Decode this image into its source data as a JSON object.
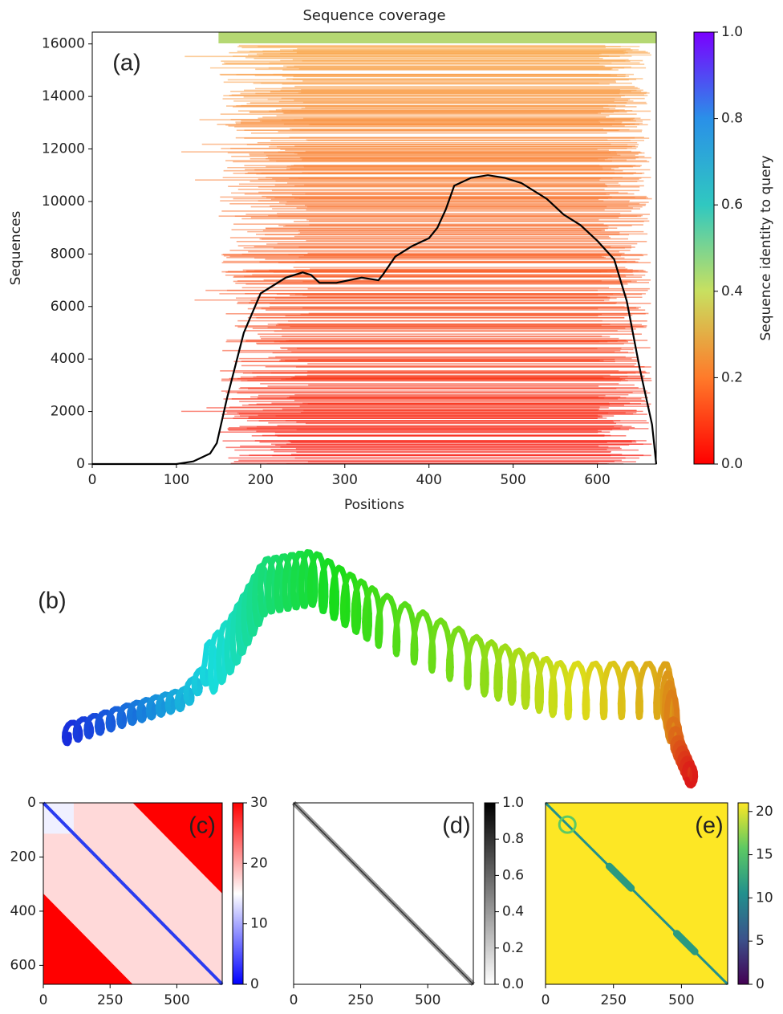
{
  "chart_data": [
    {
      "type": "line",
      "title": "Sequence coverage",
      "panel_label": "(a)",
      "xlabel": "Positions",
      "ylabel": "Sequences",
      "x": [
        0,
        100,
        120,
        140,
        148,
        160,
        180,
        200,
        230,
        250,
        260,
        270,
        290,
        320,
        340,
        345,
        360,
        380,
        400,
        410,
        420,
        430,
        450,
        470,
        490,
        510,
        540,
        560,
        580,
        600,
        620,
        635,
        650,
        665,
        670
      ],
      "values": [
        0,
        0,
        100,
        400,
        800,
        2500,
        5000,
        6500,
        7100,
        7300,
        7200,
        6900,
        6900,
        7100,
        7000,
        7200,
        7900,
        8300,
        8600,
        9000,
        9700,
        10600,
        10900,
        11000,
        10900,
        10700,
        10100,
        9500,
        9100,
        8500,
        7800,
        6200,
        3700,
        1500,
        0
      ],
      "color": "#000000",
      "xlim": [
        0,
        670
      ],
      "ylim": [
        0,
        16450
      ],
      "xticks": [
        0,
        100,
        200,
        300,
        400,
        500,
        600
      ],
      "yticks": [
        0,
        2000,
        4000,
        6000,
        8000,
        10000,
        12000,
        14000,
        16000
      ],
      "colorbar": {
        "label": "Sequence identity to query",
        "colormap": "turbo",
        "lim": [
          0,
          1
        ],
        "ticks": [
          {
            "value": 0,
            "label": "0.0"
          },
          {
            "value": 0.2,
            "label": "0.2"
          },
          {
            "value": 0.4,
            "label": "0.4"
          },
          {
            "value": 0.6,
            "label": "0.6"
          },
          {
            "value": 0.8,
            "label": "0.8"
          },
          {
            "value": 1,
            "label": "1.0"
          }
        ]
      }
    },
    {
      "type": "structure",
      "panel_label": "(b)"
    },
    {
      "type": "heatmap",
      "panel_label": "(c)",
      "xlim": [
        0,
        670
      ],
      "ylim": [
        670,
        0
      ],
      "xticks": [
        0,
        250,
        500
      ],
      "yticks": [
        0,
        200,
        400,
        600
      ],
      "colorbar": {
        "colormap": "bwr",
        "lim": [
          0,
          30
        ],
        "ticks": [
          0,
          10,
          20,
          30
        ]
      }
    },
    {
      "type": "heatmap",
      "panel_label": "(d)",
      "xlim": [
        0,
        670
      ],
      "ylim": [
        670,
        0
      ],
      "xticks": [
        0,
        250,
        500
      ],
      "colorbar": {
        "colormap": "gray_r",
        "lim": [
          0,
          1
        ],
        "ticks": [
          {
            "value": 0,
            "label": "0.0"
          },
          {
            "value": 0.2,
            "label": "0.2"
          },
          {
            "value": 0.4,
            "label": "0.4"
          },
          {
            "value": 0.6,
            "label": "0.6"
          },
          {
            "value": 0.8,
            "label": "0.8"
          },
          {
            "value": 1,
            "label": "1.0"
          }
        ]
      }
    },
    {
      "type": "heatmap",
      "panel_label": "(e)",
      "xlim": [
        0,
        670
      ],
      "ylim": [
        670,
        0
      ],
      "xticks": [
        0,
        250,
        500
      ],
      "colorbar": {
        "colormap": "viridis",
        "lim": [
          0,
          21
        ],
        "ticks": [
          0,
          5,
          10,
          15,
          20
        ]
      }
    }
  ]
}
